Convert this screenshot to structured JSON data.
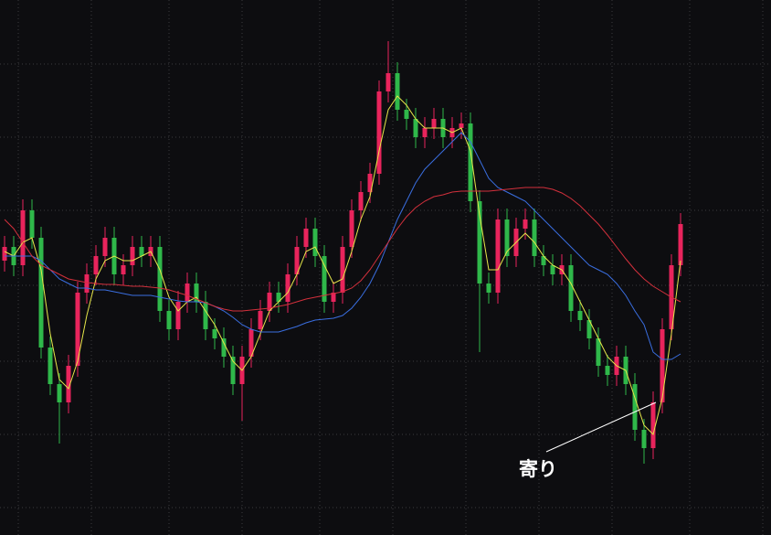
{
  "chart_data": {
    "type": "candlestick",
    "ylim": [
      0,
      585
    ],
    "up_color": "#e8245c",
    "down_color": "#2fb84a",
    "open": [
      300,
      315,
      295,
      355,
      325,
      205,
      165,
      145,
      185,
      265,
      285,
      305,
      325,
      285,
      295,
      315,
      305,
      315,
      245,
      225,
      255,
      275,
      255,
      225,
      215,
      195,
      165,
      195,
      225,
      245,
      265,
      255,
      285,
      315,
      335,
      305,
      255,
      265,
      315,
      355,
      375,
      395,
      485,
      505,
      465,
      455,
      435,
      445,
      455,
      435,
      445,
      450,
      365,
      275,
      265,
      345,
      305,
      335,
      345,
      305,
      295,
      285,
      295,
      245,
      235,
      215,
      185,
      175,
      195,
      165,
      115,
      95,
      145,
      225,
      295
    ],
    "high": [
      327,
      327,
      367,
      367,
      337,
      217,
      177,
      197,
      277,
      297,
      317,
      337,
      337,
      307,
      327,
      327,
      327,
      327,
      257,
      267,
      287,
      287,
      267,
      237,
      227,
      207,
      207,
      237,
      257,
      277,
      277,
      297,
      327,
      347,
      347,
      317,
      277,
      327,
      367,
      387,
      407,
      497,
      540,
      517,
      477,
      467,
      457,
      467,
      467,
      457,
      462,
      462,
      377,
      287,
      357,
      357,
      347,
      357,
      357,
      317,
      307,
      307,
      307,
      257,
      247,
      227,
      197,
      207,
      207,
      177,
      127,
      157,
      237,
      307,
      352
    ],
    "low": [
      288,
      283,
      283,
      313,
      193,
      153,
      100,
      133,
      173,
      253,
      273,
      293,
      273,
      273,
      283,
      293,
      293,
      233,
      213,
      213,
      243,
      243,
      213,
      203,
      183,
      153,
      125,
      183,
      213,
      233,
      243,
      243,
      273,
      303,
      293,
      243,
      243,
      253,
      303,
      343,
      363,
      383,
      473,
      453,
      443,
      423,
      423,
      433,
      423,
      423,
      433,
      353,
      200,
      253,
      253,
      293,
      293,
      323,
      293,
      283,
      273,
      273,
      233,
      223,
      203,
      173,
      163,
      163,
      153,
      103,
      78,
      83,
      133,
      213,
      283
    ],
    "close": [
      315,
      295,
      355,
      325,
      205,
      165,
      145,
      185,
      265,
      285,
      305,
      325,
      285,
      295,
      315,
      305,
      315,
      245,
      225,
      255,
      275,
      255,
      225,
      215,
      195,
      165,
      195,
      225,
      245,
      265,
      255,
      285,
      315,
      335,
      305,
      255,
      265,
      315,
      355,
      375,
      395,
      485,
      505,
      465,
      455,
      435,
      445,
      455,
      435,
      445,
      450,
      365,
      275,
      265,
      345,
      305,
      335,
      345,
      305,
      295,
      285,
      295,
      245,
      235,
      215,
      185,
      175,
      195,
      165,
      115,
      95,
      145,
      225,
      295,
      340
    ],
    "lines": [
      {
        "color": "#e6e64a",
        "values": [
          310,
          305,
          320,
          325,
          290,
          220,
          170,
          160,
          190,
          240,
          280,
          300,
          305,
          300,
          300,
          305,
          310,
          290,
          260,
          245,
          255,
          260,
          245,
          230,
          210,
          190,
          180,
          195,
          220,
          245,
          255,
          265,
          285,
          310,
          315,
          295,
          275,
          280,
          310,
          345,
          370,
          420,
          465,
          480,
          470,
          455,
          445,
          445,
          445,
          440,
          445,
          420,
          350,
          290,
          290,
          310,
          320,
          330,
          320,
          305,
          295,
          290,
          275,
          255,
          235,
          215,
          195,
          185,
          180,
          150,
          120,
          110,
          150,
          220,
          300
        ]
      },
      {
        "color": "#3a6ee0",
        "values": [
          305,
          305,
          305,
          305,
          300,
          290,
          280,
          275,
          270,
          270,
          268,
          268,
          266,
          264,
          262,
          262,
          262,
          260,
          258,
          256,
          255,
          255,
          254,
          250,
          245,
          238,
          230,
          225,
          222,
          222,
          222,
          225,
          228,
          232,
          235,
          236,
          237,
          240,
          248,
          260,
          275,
          295,
          320,
          345,
          365,
          385,
          400,
          410,
          420,
          430,
          440,
          430,
          410,
          390,
          380,
          375,
          370,
          365,
          355,
          345,
          335,
          325,
          315,
          305,
          295,
          290,
          285,
          275,
          262,
          245,
          230,
          200,
          192,
          192,
          198
        ]
      },
      {
        "color": "#d3303c",
        "values": [
          345,
          335,
          320,
          305,
          295,
          290,
          285,
          280,
          278,
          276,
          275,
          274,
          274,
          273,
          272,
          272,
          271,
          270,
          268,
          265,
          262,
          258,
          254,
          250,
          247,
          245,
          245,
          246,
          247,
          248,
          250,
          252,
          255,
          258,
          260,
          262,
          264,
          266,
          270,
          278,
          290,
          305,
          320,
          335,
          348,
          358,
          365,
          370,
          372,
          375,
          376,
          376,
          376,
          376,
          377,
          378,
          379,
          380,
          380,
          380,
          378,
          374,
          368,
          360,
          350,
          340,
          328,
          315,
          302,
          290,
          280,
          272,
          266,
          260,
          255
        ]
      }
    ],
    "annotation": "寄り"
  }
}
